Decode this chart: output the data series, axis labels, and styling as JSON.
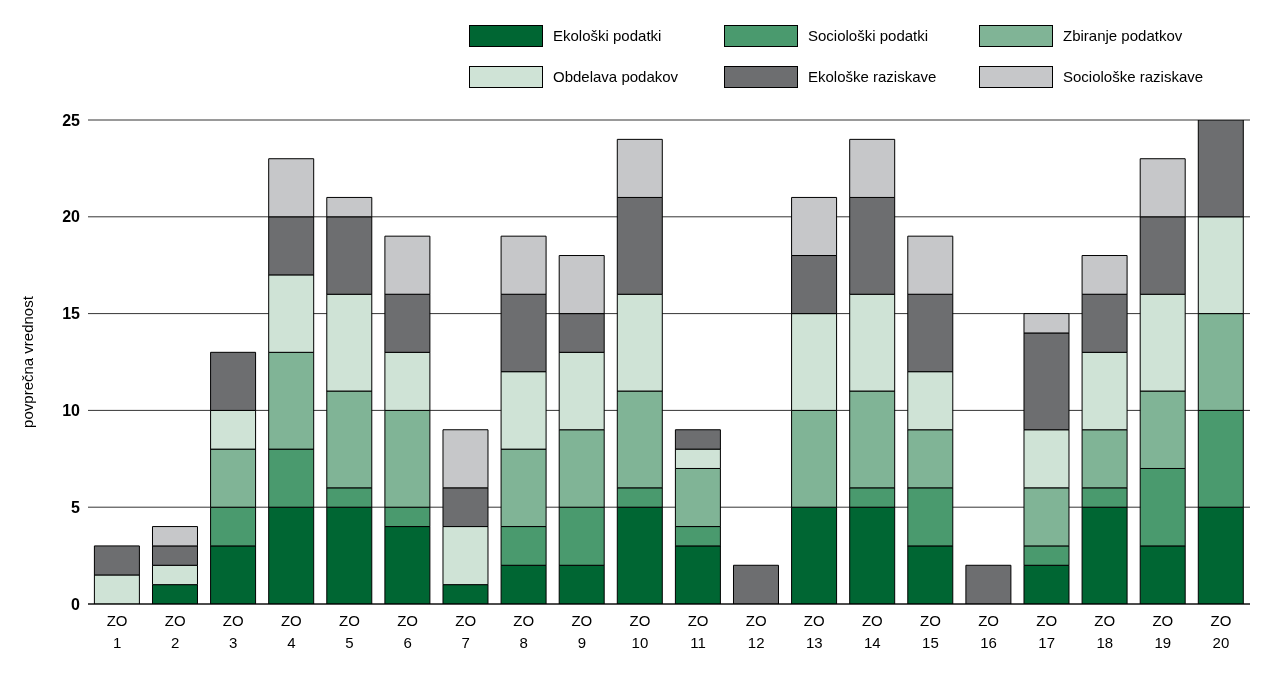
{
  "chart_data": {
    "type": "bar",
    "stacked": true,
    "ylabel": "povprečna vrednost",
    "categories": [
      "ZO 1",
      "ZO 2",
      "ZO 3",
      "ZO 4",
      "ZO 5",
      "ZO 6",
      "ZO 7",
      "ZO 8",
      "ZO 9",
      "ZO 10",
      "ZO 11",
      "ZO 12",
      "ZO 13",
      "ZO 14",
      "ZO 15",
      "ZO 16",
      "ZO 17",
      "ZO 18",
      "ZO 19",
      "ZO 20"
    ],
    "series": [
      {
        "name": "Ekološki podatki",
        "color": "#006633",
        "values": [
          0,
          1,
          3,
          5,
          5,
          4,
          1,
          2,
          2,
          5,
          3,
          0,
          5,
          5,
          3,
          0,
          2,
          5,
          3,
          5
        ]
      },
      {
        "name": "Sociološki podatki",
        "color": "#4a9a6e",
        "values": [
          0,
          0,
          2,
          3,
          1,
          1,
          0,
          2,
          3,
          1,
          1,
          0,
          0,
          1,
          3,
          0,
          1,
          1,
          4,
          5
        ]
      },
      {
        "name": "Zbiranje podatkov",
        "color": "#80b496",
        "values": [
          0,
          0,
          3,
          5,
          5,
          5,
          0,
          4,
          4,
          5,
          3,
          0,
          5,
          5,
          3,
          0,
          3,
          3,
          4,
          5
        ]
      },
      {
        "name": "Obdelava podakov",
        "color": "#cfe3d6",
        "values": [
          1.5,
          1,
          2,
          4,
          5,
          3,
          3,
          4,
          4,
          5,
          1,
          0,
          5,
          5,
          3,
          0,
          3,
          4,
          5,
          5
        ]
      },
      {
        "name": "Ekološke raziskave",
        "color": "#6d6e70",
        "values": [
          1.5,
          1,
          3,
          3,
          4,
          3,
          2,
          4,
          2,
          5,
          1,
          2,
          3,
          5,
          4,
          2,
          5,
          3,
          4,
          5
        ]
      },
      {
        "name": "Sociološke raziskave",
        "color": "#c6c7c9",
        "values": [
          0,
          1,
          0,
          3,
          1,
          3,
          3,
          3,
          3,
          3,
          0,
          0,
          3,
          3,
          3,
          0,
          1,
          2,
          3,
          0
        ]
      }
    ],
    "ylim": [
      0,
      25
    ],
    "yticks": [
      0,
      5,
      10,
      15,
      20,
      25
    ],
    "grid": "y",
    "legend": "top right"
  }
}
